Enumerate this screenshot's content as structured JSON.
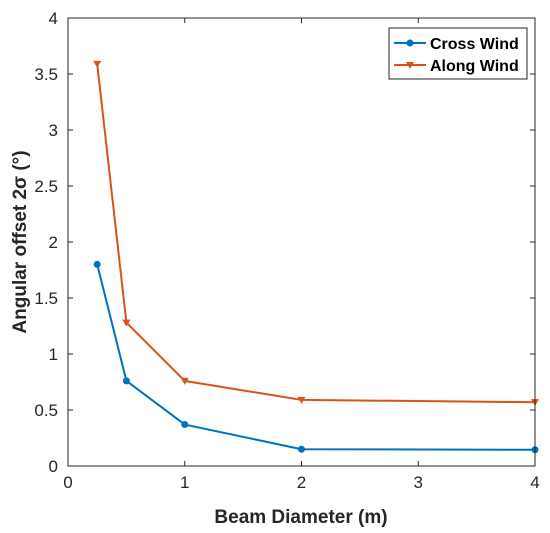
{
  "chart_data": {
    "type": "line",
    "xlabel": "Beam Diameter (m)",
    "ylabel": "Angular offset 2σ (°)",
    "xlim": [
      0,
      4
    ],
    "ylim": [
      0,
      4
    ],
    "xticks": [
      "0",
      "1",
      "2",
      "3",
      "4"
    ],
    "yticks": [
      "0",
      "0.5",
      "1",
      "1.5",
      "2",
      "2.5",
      "3",
      "3.5",
      "4"
    ],
    "grid": false,
    "legend_position": "top-right",
    "series": [
      {
        "name": "Cross Wind",
        "color": "#0072BD",
        "marker": "circle",
        "x": [
          0.25,
          0.5,
          1,
          2,
          4
        ],
        "y": [
          1.8,
          0.76,
          0.37,
          0.15,
          0.145
        ]
      },
      {
        "name": "Along Wind",
        "color": "#D95319",
        "marker": "triangle-down",
        "x": [
          0.25,
          0.5,
          1,
          2,
          4
        ],
        "y": [
          3.59,
          1.28,
          0.76,
          0.59,
          0.57
        ]
      }
    ]
  }
}
